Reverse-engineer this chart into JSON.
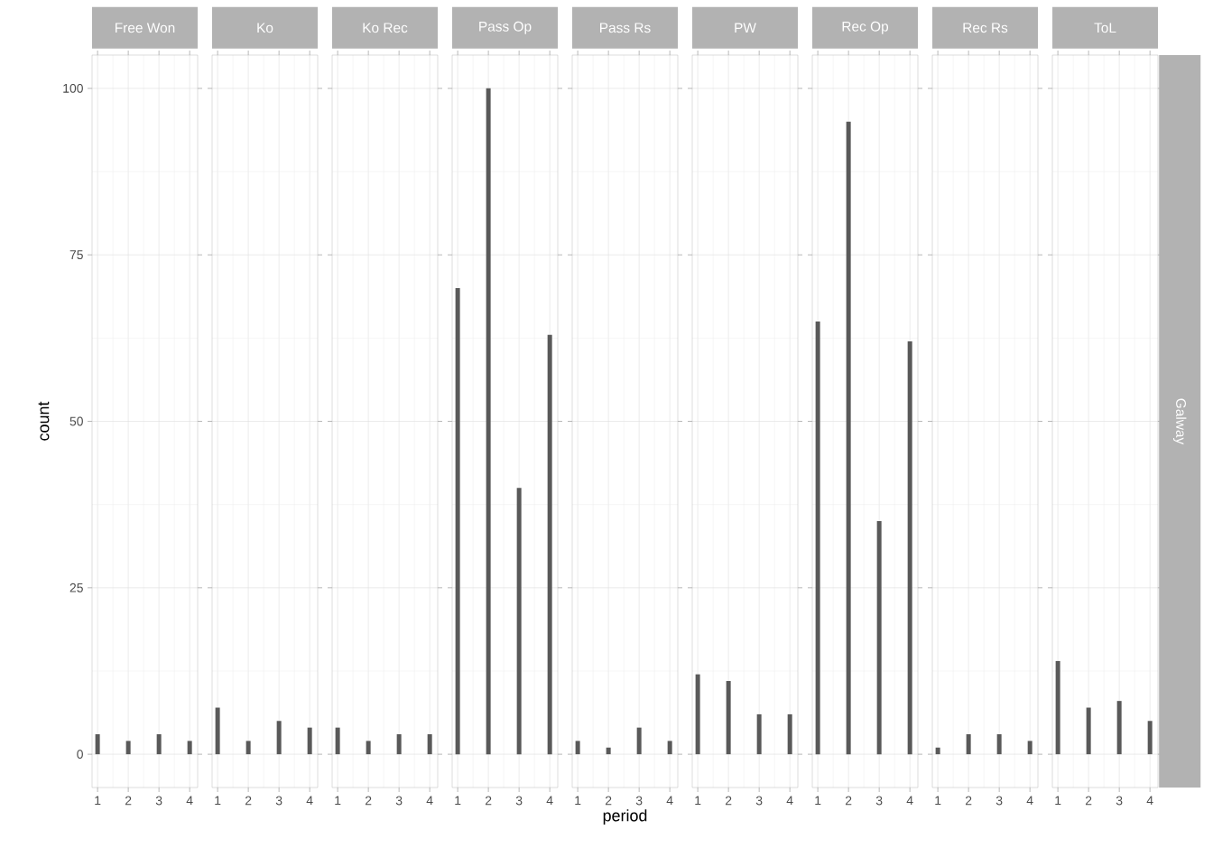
{
  "chart_data": [
    {
      "type": "bar",
      "title": "Free Won",
      "ylabel": "count",
      "x": [
        1,
        2,
        3,
        4
      ],
      "values": [
        3,
        2,
        3,
        2
      ],
      "color": "#595959",
      "xlim": [
        0.82,
        4.26
      ],
      "ylim": [
        -5,
        105
      ],
      "xticks": [
        1,
        2,
        3,
        4
      ],
      "yticks": [
        0,
        25,
        50,
        75,
        100
      ],
      "grid": true
    },
    {
      "type": "bar",
      "title": "Ko",
      "x": [
        1,
        2,
        3,
        4
      ],
      "values": [
        7,
        2,
        5,
        4
      ],
      "color": "#595959",
      "xlim": [
        0.82,
        4.26
      ],
      "ylim": [
        -5,
        105
      ],
      "xticks": [
        1,
        2,
        3,
        4
      ],
      "yticks": [
        0,
        25,
        50,
        75,
        100
      ],
      "grid": true,
      "tick_labels": "x"
    },
    {
      "type": "bar",
      "title": "Ko Rec",
      "x": [
        1,
        2,
        3,
        4
      ],
      "values": [
        4,
        2,
        3,
        3
      ],
      "color": "#595959",
      "xlim": [
        0.82,
        4.26
      ],
      "ylim": [
        -5,
        105
      ],
      "xticks": [
        1,
        2,
        3,
        4
      ],
      "yticks": [
        0,
        25,
        50,
        75,
        100
      ],
      "grid": true,
      "tick_labels": "x"
    },
    {
      "type": "bar",
      "title": "Pass Op",
      "x": [
        1,
        2,
        3,
        4
      ],
      "values": [
        70,
        100,
        40,
        63
      ],
      "color": "#595959",
      "xlim": [
        0.82,
        4.26
      ],
      "ylim": [
        -5,
        105
      ],
      "xticks": [
        1,
        2,
        3,
        4
      ],
      "yticks": [
        0,
        25,
        50,
        75,
        100
      ],
      "grid": true,
      "tick_labels": "x"
    },
    {
      "type": "bar",
      "title": "Pass Rs",
      "xlabel": "period",
      "x": [
        1,
        2,
        3,
        4
      ],
      "values": [
        2,
        1,
        4,
        2
      ],
      "color": "#595959",
      "xlim": [
        0.82,
        4.26
      ],
      "ylim": [
        -5,
        105
      ],
      "xticks": [
        1,
        2,
        3,
        4
      ],
      "yticks": [
        0,
        25,
        50,
        75,
        100
      ],
      "grid": true,
      "tick_labels": "x"
    },
    {
      "type": "bar",
      "title": "PW",
      "x": [
        1,
        2,
        3,
        4
      ],
      "values": [
        12,
        11,
        6,
        6
      ],
      "color": "#595959",
      "xlim": [
        0.82,
        4.26
      ],
      "ylim": [
        -5,
        105
      ],
      "xticks": [
        1,
        2,
        3,
        4
      ],
      "yticks": [
        0,
        25,
        50,
        75,
        100
      ],
      "grid": true,
      "tick_labels": "x"
    },
    {
      "type": "bar",
      "title": "Rec Op",
      "x": [
        1,
        2,
        3,
        4
      ],
      "values": [
        65,
        95,
        35,
        62
      ],
      "color": "#595959",
      "xlim": [
        0.82,
        4.26
      ],
      "ylim": [
        -5,
        105
      ],
      "xticks": [
        1,
        2,
        3,
        4
      ],
      "yticks": [
        0,
        25,
        50,
        75,
        100
      ],
      "grid": true,
      "tick_labels": "x"
    },
    {
      "type": "bar",
      "title": "Rec Rs",
      "x": [
        1,
        2,
        3,
        4
      ],
      "values": [
        1,
        3,
        3,
        2
      ],
      "color": "#595959",
      "xlim": [
        0.82,
        4.26
      ],
      "ylim": [
        -5,
        105
      ],
      "xticks": [
        1,
        2,
        3,
        4
      ],
      "yticks": [
        0,
        25,
        50,
        75,
        100
      ],
      "grid": true,
      "tick_labels": "x"
    },
    {
      "type": "bar",
      "title": "ToL",
      "x": [
        1,
        2,
        3,
        4
      ],
      "values": [
        14,
        7,
        8,
        5
      ],
      "color": "#595959",
      "xlim": [
        0.82,
        4.26
      ],
      "ylim": [
        -5,
        105
      ],
      "xticks": [
        1,
        2,
        3,
        4
      ],
      "yticks": [
        0,
        25,
        50,
        75,
        100
      ],
      "grid": true,
      "tick_labels": "x",
      "annotations": [
        "Galway"
      ]
    }
  ]
}
